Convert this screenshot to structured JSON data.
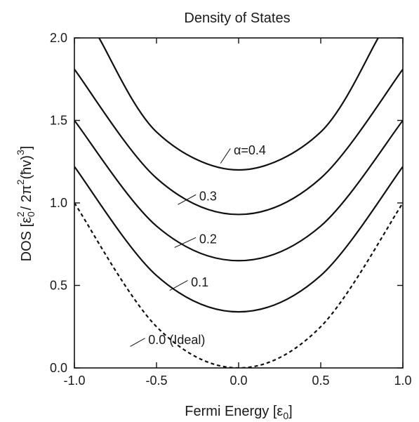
{
  "chart_data": {
    "type": "line",
    "title": "Density of States",
    "xlabel_main": "Fermi Energy [ε",
    "xlabel_sub": "0",
    "xlabel_end": "]",
    "ylabel": {
      "p1": "DOS [ε",
      "sub0": "0",
      "sup2a": "2",
      "p2": "/ 2π",
      "sup2b": "2",
      "p3": "(ħv)",
      "sup3": "3",
      "p4": "]"
    },
    "xlim": [
      -1.0,
      1.0
    ],
    "ylim": [
      0.0,
      2.0
    ],
    "x_ticks": [
      -1.0,
      -0.5,
      0.0,
      0.5,
      1.0
    ],
    "x_tick_labels": [
      "-1.0",
      "-0.5",
      "0.0",
      "0.5",
      "1.0"
    ],
    "y_ticks": [
      0.0,
      0.5,
      1.0,
      1.5,
      2.0
    ],
    "y_tick_labels": [
      "0.0",
      "0.5",
      "1.0",
      "1.5",
      "2.0"
    ],
    "grid": false,
    "series": [
      {
        "label": "0.0 (Ideal)",
        "style": "dashed",
        "points": [
          [
            -1.0,
            1.0
          ],
          [
            -0.5,
            0.25
          ],
          [
            0.0,
            0.0
          ],
          [
            0.5,
            0.25
          ],
          [
            1.0,
            1.0
          ]
        ]
      },
      {
        "label": "0.1",
        "style": "solid",
        "points": [
          [
            -1.0,
            1.22
          ],
          [
            -0.5,
            0.56
          ],
          [
            0.0,
            0.34
          ],
          [
            0.5,
            0.56
          ],
          [
            1.0,
            1.22
          ]
        ]
      },
      {
        "label": "0.2",
        "style": "solid",
        "points": [
          [
            -1.0,
            1.5
          ],
          [
            -0.5,
            0.86
          ],
          [
            0.0,
            0.65
          ],
          [
            0.5,
            0.86
          ],
          [
            1.0,
            1.5
          ]
        ]
      },
      {
        "label": "0.3",
        "style": "solid",
        "points": [
          [
            -1.0,
            1.81
          ],
          [
            -0.5,
            1.15
          ],
          [
            0.0,
            0.93
          ],
          [
            0.5,
            1.15
          ],
          [
            1.0,
            1.81
          ]
        ]
      },
      {
        "label": "α=0.4",
        "style": "solid",
        "points": [
          [
            -0.85,
            2.0
          ],
          [
            -0.5,
            1.43
          ],
          [
            0.0,
            1.2
          ],
          [
            0.5,
            1.43
          ],
          [
            0.85,
            2.0
          ]
        ]
      }
    ]
  }
}
